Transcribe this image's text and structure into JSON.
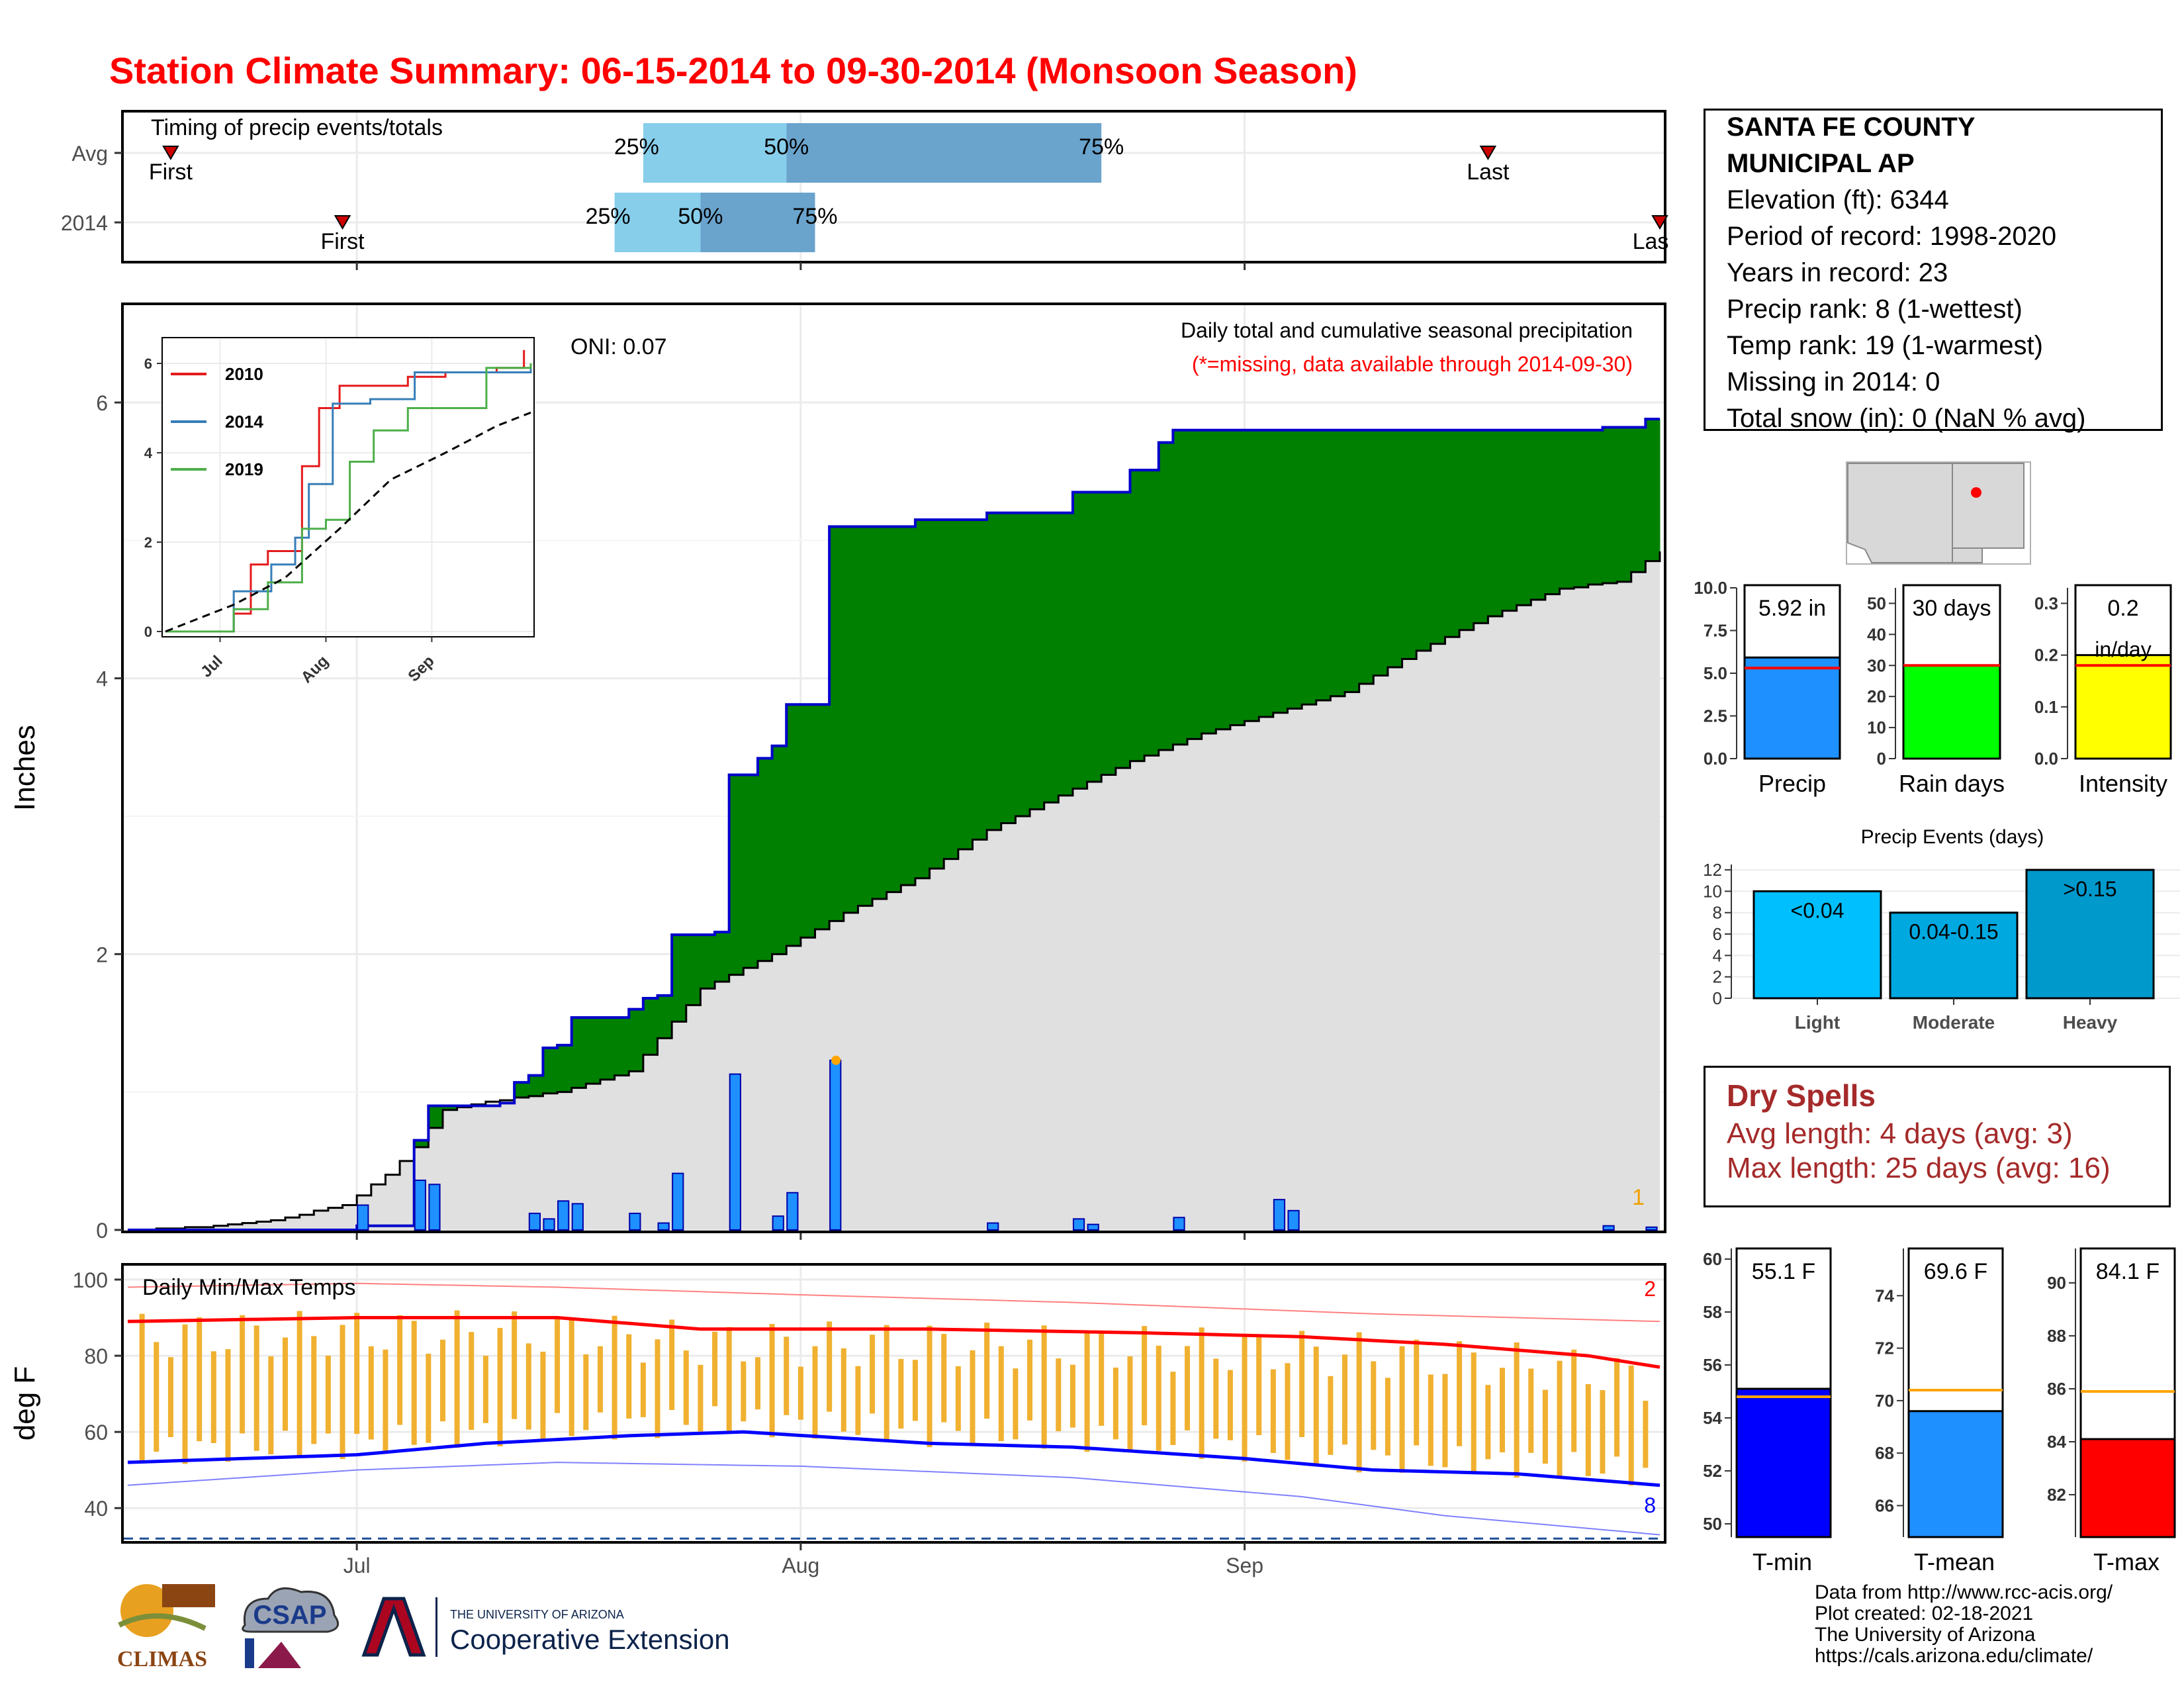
{
  "title": "Station Climate Summary: 06-15-2014 to 09-30-2014 (Monsoon Season)",
  "colors": {
    "title": "#ff0000",
    "panel_border": "#000000",
    "cum_fill": "#008000",
    "deficit_fill": "#8b5a00",
    "avg_fill": "#e0e0e0",
    "daily_bar": "#1e90ff",
    "tmax": "#ff0000",
    "tmin": "#0000ff",
    "temp_bar": "#f0b030",
    "q_light": "#87ceeb",
    "q_dark": "#6aa4cd"
  },
  "timing": {
    "label": "Timing of precip events/totals",
    "rows": [
      {
        "name": "Avg",
        "first": "First",
        "last": "Last",
        "first_day": "2014-06-18",
        "last_day": "2014-09-18",
        "q25": "25%",
        "q50": "50%",
        "q75": "75%",
        "q25_day": "2014-07-21",
        "q50_day": "2014-07-31",
        "q75_day": "2014-08-22"
      },
      {
        "name": "2014",
        "first": "First",
        "last": "Las",
        "first_day": "2014-06-30",
        "last_day": "2014-09-30",
        "q25": "25%",
        "q50": "50%",
        "q75": "75%",
        "q25_day": "2014-07-19",
        "q50_day": "2014-07-25",
        "q75_day": "2014-08-02"
      }
    ]
  },
  "precip_panel": {
    "ylabel": "Inches",
    "oni": "ONI: 0.07",
    "subtitle": "Daily total and cumulative seasonal precipitation",
    "missing_note": "(*=missing, data available through 2014-09-30)",
    "corner_count": "1",
    "yticks": [
      "0",
      "2",
      "4",
      "6"
    ]
  },
  "inset": {
    "legend": [
      "2010",
      "2014",
      "2019"
    ],
    "yticks": [
      "0",
      "2",
      "4",
      "6"
    ],
    "xticks": [
      "Jul",
      "Aug",
      "Sep"
    ]
  },
  "temp_panel": {
    "ylabel": "deg F",
    "label": "Daily Min/Max Temps",
    "count_high": "2",
    "count_low": "8",
    "yticks": [
      "40",
      "60",
      "80",
      "100"
    ],
    "xticks": [
      "Jul",
      "Aug",
      "Sep"
    ]
  },
  "station": {
    "name": "SANTA FE COUNTY",
    "name2": "MUNICIPAL AP",
    "lines": [
      "Elevation (ft): 6344",
      "Period of record: 1998-2020",
      "Years in record: 23",
      "Precip rank: 8 (1-wettest)",
      "Temp rank: 19 (1-warmest)",
      "Missing in 2014: 0",
      "Total snow (in): 0 (NaN % avg)"
    ]
  },
  "mini_bars": [
    {
      "label": "Precip",
      "value_text": "5.92 in",
      "value": 5.92,
      "avg": 5.3,
      "ymax": 10,
      "ticks": [
        "0.0",
        "2.5",
        "5.0",
        "7.5",
        "10.0"
      ],
      "color": "#1e90ff"
    },
    {
      "label": "Rain days",
      "value_text": "30 days",
      "value": 30,
      "avg": 30,
      "ymax": 55,
      "ticks": [
        "0",
        "10",
        "20",
        "30",
        "40",
        "50"
      ],
      "color": "#00ff00"
    },
    {
      "label": "Intensity",
      "value_text": "0.2",
      "value_text2": "in/day",
      "value": 0.2,
      "avg": 0.18,
      "ymax": 0.33,
      "ticks": [
        "0.0",
        "0.1",
        "0.2",
        "0.3"
      ],
      "color": "#ffff00"
    }
  ],
  "events": {
    "title": "Precip Events (days)",
    "ticks": [
      "0",
      "2",
      "4",
      "6",
      "8",
      "10",
      "12"
    ],
    "bars": [
      {
        "label": "Light",
        "text": "<0.04",
        "value": 10,
        "color": "#00bfff"
      },
      {
        "label": "Moderate",
        "text": "0.04-0.15",
        "value": 8,
        "color": "#00a8e0"
      },
      {
        "label": "Heavy",
        "text": ">0.15",
        "value": 12,
        "color": "#0099cc"
      }
    ]
  },
  "dry_spells": {
    "title": "Dry Spells",
    "avg": "Avg length: 4 days (avg: 3)",
    "max": "Max length: 25 days (avg: 16)"
  },
  "temp_bars": [
    {
      "label": "T-min",
      "value_text": "55.1 F",
      "value": 55.1,
      "avg": 54.8,
      "ymin": 49.5,
      "ymax": 60.4,
      "ticks": [
        "50",
        "52",
        "54",
        "56",
        "58",
        "60"
      ],
      "color": "#0000ff"
    },
    {
      "label": "T-mean",
      "value_text": "69.6 F",
      "value": 69.6,
      "avg": 70.4,
      "ymin": 64.8,
      "ymax": 75.8,
      "ticks": [
        "66",
        "68",
        "70",
        "72",
        "74"
      ],
      "color": "#1e90ff"
    },
    {
      "label": "T-max",
      "value_text": "84.1 F",
      "value": 84.1,
      "avg": 85.9,
      "ymin": 80.4,
      "ymax": 91.3,
      "ticks": [
        "82",
        "84",
        "86",
        "88",
        "90"
      ],
      "color": "#ff0000"
    }
  ],
  "credits": [
    "Data from http://www.rcc-acis.org/",
    "Plot created: 02-18-2021",
    "The University of Arizona",
    "https://cals.arizona.edu/climate/"
  ],
  "logos": {
    "climas": "CLIMAS",
    "csap": "CSAP",
    "ua_small": "THE UNIVERSITY OF ARIZONA",
    "ua_big": "Cooperative Extension"
  },
  "chart_data": {
    "type": "area",
    "x_start": "2014-06-15",
    "x_end": "2014-09-30",
    "xticks": [
      "Jul",
      "Aug",
      "Sep"
    ],
    "ylim": [
      0,
      6.5
    ],
    "ylabel": "Inches",
    "cumulative_2014": [
      [
        "2014-06-15",
        0.0
      ],
      [
        "2014-06-30",
        0.0
      ],
      [
        "2014-07-01",
        0.03
      ],
      [
        "2014-07-04",
        0.03
      ],
      [
        "2014-07-05",
        0.65
      ],
      [
        "2014-07-06",
        0.9
      ],
      [
        "2014-07-10",
        0.9
      ],
      [
        "2014-07-11",
        0.92
      ],
      [
        "2014-07-12",
        1.07
      ],
      [
        "2014-07-13",
        1.12
      ],
      [
        "2014-07-14",
        1.32
      ],
      [
        "2014-07-15",
        1.34
      ],
      [
        "2014-07-16",
        1.54
      ],
      [
        "2014-07-19",
        1.54
      ],
      [
        "2014-07-20",
        1.6
      ],
      [
        "2014-07-21",
        1.68
      ],
      [
        "2014-07-22",
        1.7
      ],
      [
        "2014-07-23",
        2.14
      ],
      [
        "2014-07-26",
        2.16
      ],
      [
        "2014-07-27",
        3.3
      ],
      [
        "2014-07-28",
        3.3
      ],
      [
        "2014-07-29",
        3.42
      ],
      [
        "2014-07-30",
        3.51
      ],
      [
        "2014-07-31",
        3.81
      ],
      [
        "2014-08-02",
        3.81
      ],
      [
        "2014-08-03",
        5.1
      ],
      [
        "2014-08-08",
        5.1
      ],
      [
        "2014-08-09",
        5.15
      ],
      [
        "2014-08-13",
        5.15
      ],
      [
        "2014-08-14",
        5.2
      ],
      [
        "2014-08-20",
        5.35
      ],
      [
        "2014-08-24",
        5.51
      ],
      [
        "2014-08-26",
        5.71
      ],
      [
        "2014-08-27",
        5.8
      ],
      [
        "2014-09-26",
        5.82
      ],
      [
        "2014-09-29",
        5.88
      ],
      [
        "2014-09-30",
        5.88
      ]
    ],
    "cumulative_avg": [
      [
        "2014-06-15",
        0.0
      ],
      [
        "2014-06-20",
        0.02
      ],
      [
        "2014-06-25",
        0.07
      ],
      [
        "2014-06-30",
        0.18
      ],
      [
        "2014-07-03",
        0.4
      ],
      [
        "2014-07-05",
        0.6
      ],
      [
        "2014-07-07",
        0.87
      ],
      [
        "2014-07-10",
        0.93
      ],
      [
        "2014-07-15",
        1.0
      ],
      [
        "2014-07-20",
        1.15
      ],
      [
        "2014-07-25",
        1.75
      ],
      [
        "2014-07-30",
        2.0
      ],
      [
        "2014-08-04",
        2.3
      ],
      [
        "2014-08-09",
        2.55
      ],
      [
        "2014-08-14",
        2.9
      ],
      [
        "2014-08-19",
        3.15
      ],
      [
        "2014-08-24",
        3.4
      ],
      [
        "2014-08-29",
        3.6
      ],
      [
        "2014-09-03",
        3.75
      ],
      [
        "2014-09-08",
        3.9
      ],
      [
        "2014-09-13",
        4.2
      ],
      [
        "2014-09-18",
        4.45
      ],
      [
        "2014-09-23",
        4.65
      ],
      [
        "2014-09-27",
        4.7
      ],
      [
        "2014-09-30",
        4.92
      ]
    ],
    "daily_2014": [
      [
        "2014-07-01",
        0.18
      ],
      [
        "2014-07-05",
        0.36
      ],
      [
        "2014-07-06",
        0.33
      ],
      [
        "2014-07-13",
        0.12
      ],
      [
        "2014-07-14",
        0.08
      ],
      [
        "2014-07-15",
        0.21
      ],
      [
        "2014-07-16",
        0.19
      ],
      [
        "2014-07-20",
        0.12
      ],
      [
        "2014-07-22",
        0.05
      ],
      [
        "2014-07-23",
        0.41
      ],
      [
        "2014-07-27",
        1.13
      ],
      [
        "2014-07-30",
        0.1
      ],
      [
        "2014-07-31",
        0.27
      ],
      [
        "2014-08-03",
        1.23
      ],
      [
        "2014-08-14",
        0.05
      ],
      [
        "2014-08-20",
        0.08
      ],
      [
        "2014-08-21",
        0.04
      ],
      [
        "2014-08-27",
        0.09
      ],
      [
        "2014-09-03",
        0.22
      ],
      [
        "2014-09-04",
        0.14
      ],
      [
        "2014-09-26",
        0.03
      ],
      [
        "2014-09-29",
        0.02
      ]
    ],
    "inset_series": [
      {
        "name": "2010",
        "points": [
          [
            "2014-06-15",
            0
          ],
          [
            "2014-07-05",
            0.4
          ],
          [
            "2014-07-10",
            1.5
          ],
          [
            "2014-07-15",
            1.8
          ],
          [
            "2014-07-20",
            1.8
          ],
          [
            "2014-07-25",
            3.7
          ],
          [
            "2014-07-30",
            5.0
          ],
          [
            "2014-08-05",
            5.5
          ],
          [
            "2014-08-15",
            5.5
          ],
          [
            "2014-08-25",
            5.7
          ],
          [
            "2014-09-05",
            5.8
          ],
          [
            "2014-09-20",
            5.9
          ],
          [
            "2014-09-28",
            6.3
          ]
        ]
      },
      {
        "name": "2014",
        "points": [
          [
            "2014-06-15",
            0
          ],
          [
            "2014-07-05",
            0.9
          ],
          [
            "2014-07-16",
            1.5
          ],
          [
            "2014-07-23",
            2.1
          ],
          [
            "2014-07-27",
            3.3
          ],
          [
            "2014-08-03",
            5.1
          ],
          [
            "2014-08-14",
            5.2
          ],
          [
            "2014-08-27",
            5.8
          ],
          [
            "2014-09-30",
            5.9
          ]
        ]
      },
      {
        "name": "2019",
        "points": [
          [
            "2014-06-15",
            0
          ],
          [
            "2014-07-05",
            0.5
          ],
          [
            "2014-07-15",
            1.1
          ],
          [
            "2014-07-25",
            2.3
          ],
          [
            "2014-08-01",
            2.5
          ],
          [
            "2014-08-08",
            3.8
          ],
          [
            "2014-08-15",
            4.5
          ],
          [
            "2014-08-25",
            5.0
          ],
          [
            "2014-09-10",
            5.0
          ],
          [
            "2014-09-17",
            5.9
          ],
          [
            "2014-09-30",
            6.0
          ]
        ]
      },
      {
        "name": "avg",
        "points": [
          [
            "2014-06-15",
            0
          ],
          [
            "2014-07-05",
            0.6
          ],
          [
            "2014-07-20",
            1.2
          ],
          [
            "2014-08-05",
            2.3
          ],
          [
            "2014-08-20",
            3.4
          ],
          [
            "2014-09-05",
            4.0
          ],
          [
            "2014-09-20",
            4.6
          ],
          [
            "2014-09-30",
            4.9
          ]
        ]
      }
    ],
    "temps": {
      "ylim": [
        31,
        104
      ],
      "tmax_avg": [
        [
          "2014-06-15",
          89
        ],
        [
          "2014-07-01",
          90
        ],
        [
          "2014-07-15",
          90
        ],
        [
          "2014-07-25",
          87
        ],
        [
          "2014-08-10",
          87
        ],
        [
          "2014-08-25",
          86
        ],
        [
          "2014-09-05",
          85
        ],
        [
          "2014-09-15",
          83
        ],
        [
          "2014-09-25",
          80
        ],
        [
          "2014-09-30",
          77
        ]
      ],
      "tmin_avg": [
        [
          "2014-06-15",
          52
        ],
        [
          "2014-07-01",
          54
        ],
        [
          "2014-07-10",
          57
        ],
        [
          "2014-07-20",
          59
        ],
        [
          "2014-07-28",
          60
        ],
        [
          "2014-08-10",
          57
        ],
        [
          "2014-08-20",
          56
        ],
        [
          "2014-09-01",
          53
        ],
        [
          "2014-09-10",
          50
        ],
        [
          "2014-09-20",
          49
        ],
        [
          "2014-09-30",
          46
        ]
      ],
      "tmax_record": [
        [
          "2014-06-15",
          98
        ],
        [
          "2014-07-01",
          99
        ],
        [
          "2014-07-15",
          98
        ],
        [
          "2014-08-01",
          96
        ],
        [
          "2014-08-20",
          94
        ],
        [
          "2014-09-10",
          91
        ],
        [
          "2014-09-30",
          89
        ]
      ],
      "tmin_record": [
        [
          "2014-06-15",
          46
        ],
        [
          "2014-07-01",
          50
        ],
        [
          "2014-07-15",
          52
        ],
        [
          "2014-08-01",
          51
        ],
        [
          "2014-08-20",
          48
        ],
        [
          "2014-09-05",
          43
        ],
        [
          "2014-09-15",
          38
        ],
        [
          "2014-09-30",
          33
        ]
      ],
      "freeze_line": 32
    }
  }
}
